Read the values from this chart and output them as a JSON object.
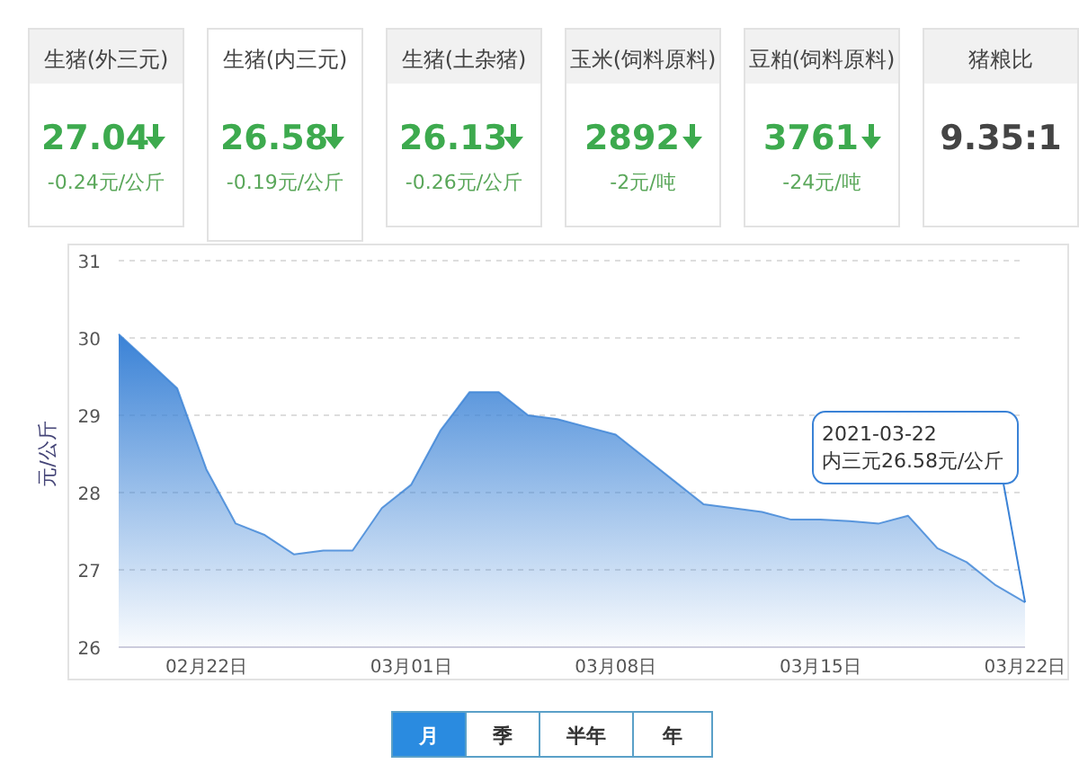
{
  "chart_data": [
    {
      "type": "other",
      "annotations": [
        "生猪(外三元)",
        "27.04",
        "-0.24元/公斤",
        "生猪(内三元)",
        "26.58",
        "-0.19元/公斤",
        "生猪(土杂猪)",
        "26.13",
        "-0.26元/公斤",
        "玉米(饲料原料)",
        "2892",
        "-2元/吨",
        "豆粕(饲料原料)",
        "3761",
        "-24元/吨",
        "猪粮比",
        "9.35:1"
      ]
    },
    {
      "type": "area",
      "ylabel": "元/公斤",
      "color": "#3a82d6",
      "grid": "y",
      "ylim": [
        26,
        31
      ],
      "yticks": [
        26,
        27,
        28,
        29,
        30,
        31
      ],
      "xlim": [
        "2021-02-19",
        "2021-03-22"
      ],
      "xticks": [
        {
          "value": "2021-02-22",
          "label": "02月22日"
        },
        {
          "value": "2021-03-01",
          "label": "03月01日"
        },
        {
          "value": "2021-03-08",
          "label": "03月08日"
        },
        {
          "value": "2021-03-15",
          "label": "03月15日"
        },
        {
          "value": "2021-03-22",
          "label": "03月22日"
        }
      ],
      "x": [
        "2021-02-19",
        "2021-02-20",
        "2021-02-21",
        "2021-02-22",
        "2021-02-23",
        "2021-02-24",
        "2021-02-25",
        "2021-02-26",
        "2021-02-27",
        "2021-02-28",
        "2021-03-01",
        "2021-03-02",
        "2021-03-03",
        "2021-03-04",
        "2021-03-05",
        "2021-03-06",
        "2021-03-07",
        "2021-03-08",
        "2021-03-09",
        "2021-03-10",
        "2021-03-11",
        "2021-03-12",
        "2021-03-13",
        "2021-03-14",
        "2021-03-15",
        "2021-03-16",
        "2021-03-17",
        "2021-03-18",
        "2021-03-19",
        "2021-03-20",
        "2021-03-21",
        "2021-03-22"
      ],
      "values": [
        30.05,
        29.7,
        29.35,
        28.3,
        27.6,
        27.45,
        27.2,
        27.25,
        27.25,
        27.8,
        28.1,
        28.8,
        29.3,
        29.3,
        29.0,
        28.95,
        28.85,
        28.75,
        28.45,
        28.15,
        27.85,
        27.8,
        27.75,
        27.65,
        27.65,
        27.63,
        27.6,
        27.7,
        27.28,
        27.1,
        26.8,
        26.58
      ],
      "annotations": [
        {
          "text": "2021-03-22\n内三元26.58元/公斤",
          "x": "2021-03-22",
          "y": 26.58
        }
      ]
    },
    {
      "type": "other",
      "annotations": [
        "月",
        "季",
        "半年",
        "年"
      ]
    }
  ]
}
